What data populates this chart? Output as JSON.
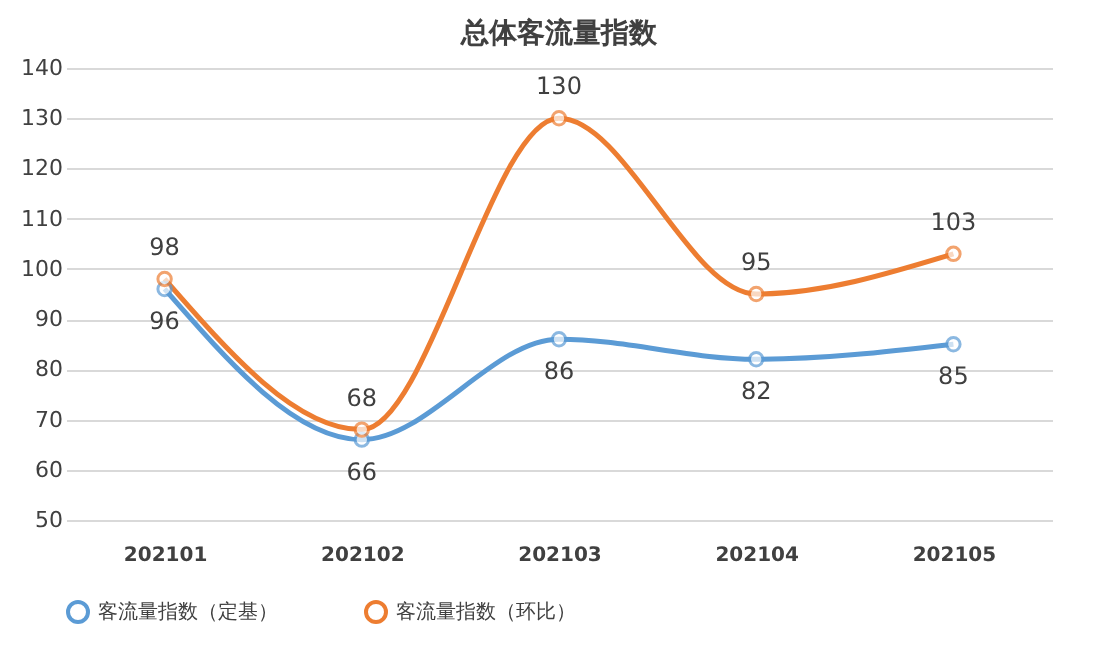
{
  "chart_data": {
    "type": "line",
    "title": "总体客流量指数",
    "categories": [
      "202101",
      "202102",
      "202103",
      "202104",
      "202105"
    ],
    "series": [
      {
        "name": "客流量指数（定基）",
        "color": "#5b9bd5",
        "values": [
          96,
          66,
          86,
          82,
          85
        ]
      },
      {
        "name": "客流量指数（环比）",
        "color": "#ed7d31",
        "values": [
          98,
          68,
          130,
          95,
          103
        ]
      }
    ],
    "ylim": [
      50,
      140
    ],
    "yticks": [
      50,
      60,
      70,
      80,
      90,
      100,
      110,
      120,
      130,
      140
    ],
    "grid": "y",
    "legend": "bottom",
    "marker": "circle",
    "data_labels": true
  }
}
